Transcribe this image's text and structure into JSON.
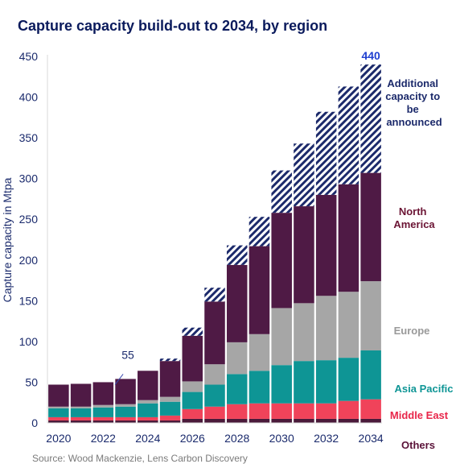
{
  "chart_data": {
    "type": "bar",
    "stacked": true,
    "title": "Capture capacity build-out to 2034, by region",
    "ylabel": "Capture capacity in Mtpa",
    "xlabel": "",
    "ylim": [
      0,
      450
    ],
    "yticks": [
      0,
      50,
      100,
      150,
      200,
      250,
      300,
      350,
      400,
      450
    ],
    "categories": [
      2020,
      2021,
      2022,
      2023,
      2024,
      2025,
      2026,
      2027,
      2028,
      2029,
      2030,
      2031,
      2032,
      2033,
      2034
    ],
    "xtick_labels": [
      "2020",
      "2022",
      "2024",
      "2026",
      "2028",
      "2030",
      "2032",
      "2034"
    ],
    "series": [
      {
        "name": "Others",
        "color": "#4a1a3a",
        "values": [
          3,
          3,
          3,
          3,
          3,
          3,
          5,
          5,
          5,
          5,
          5,
          5,
          5,
          5,
          5
        ]
      },
      {
        "name": "Middle East",
        "color": "#f0435a",
        "values": [
          4,
          4,
          4,
          4,
          4,
          6,
          12,
          15,
          18,
          19,
          19,
          19,
          19,
          22,
          24
        ]
      },
      {
        "name": "Asia Pacific",
        "color": "#0e9595",
        "values": [
          11,
          11,
          12,
          13,
          17,
          17,
          21,
          27,
          37,
          40,
          47,
          52,
          53,
          53,
          60
        ]
      },
      {
        "name": "Europe",
        "color": "#a6a6a6",
        "values": [
          2,
          2,
          3,
          3,
          4,
          6,
          13,
          25,
          39,
          45,
          70,
          71,
          79,
          81,
          85
        ]
      },
      {
        "name": "North America",
        "color": "#4f1a45",
        "values": [
          27,
          28,
          28,
          31,
          36,
          44,
          56,
          77,
          95,
          108,
          117,
          119,
          124,
          132,
          133
        ]
      },
      {
        "name": "Additional capacity to be announced",
        "color": "#1c2a6b",
        "pattern": "hatched",
        "values": [
          0,
          0,
          0,
          0,
          0,
          3,
          10,
          17,
          24,
          36,
          52,
          77,
          102,
          120,
          133
        ]
      }
    ],
    "annotations": [
      {
        "text": "55",
        "category": 2023,
        "value": 55
      },
      {
        "text": "440",
        "category": 2034,
        "value": 440
      }
    ],
    "legend_placement": "right, labels beside stacks",
    "grid": false
  },
  "source": "Source: Wood Mackenzie,  Lens Carbon Discovery"
}
